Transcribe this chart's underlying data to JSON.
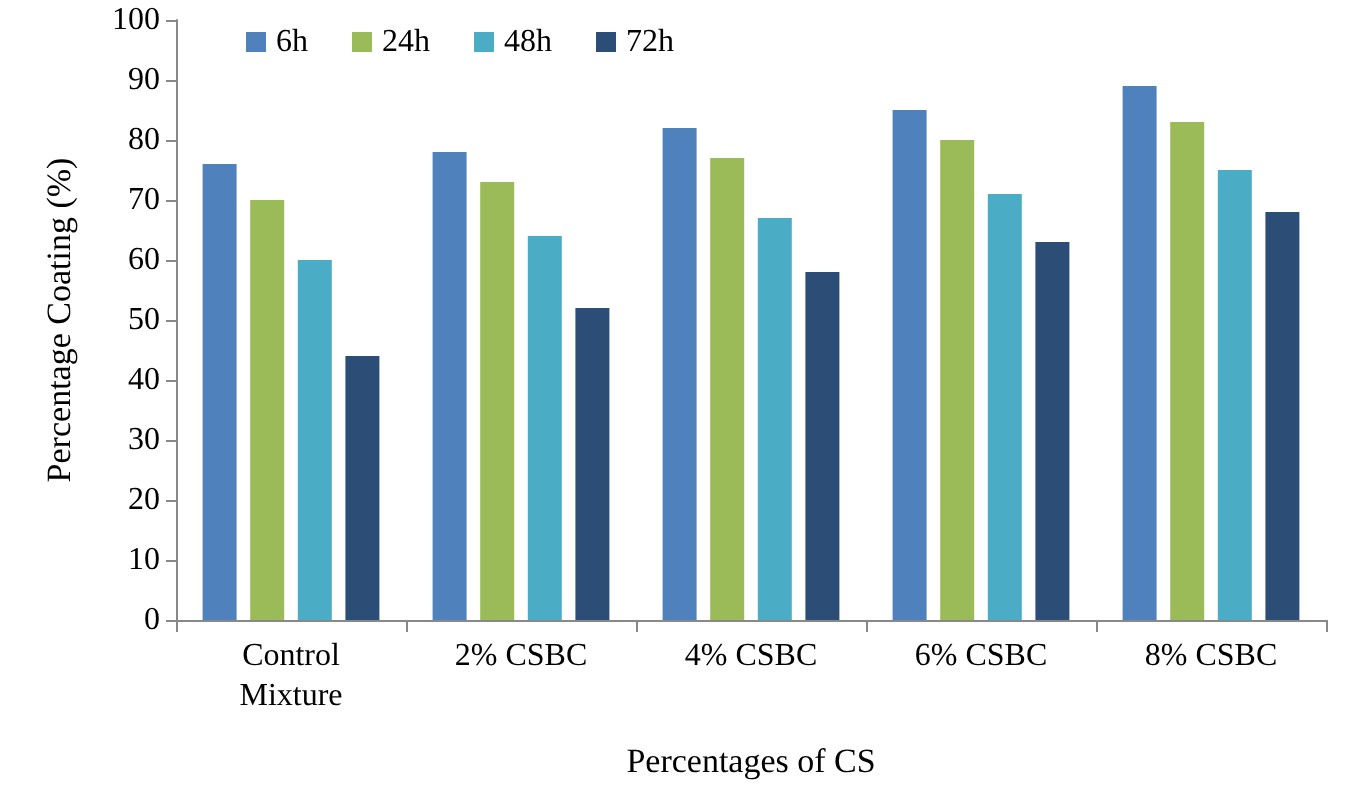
{
  "chart_data": {
    "type": "bar",
    "categories": [
      "Control\nMixture",
      "2% CSBC",
      "4% CSBC",
      "6% CSBC",
      "8% CSBC"
    ],
    "series": [
      {
        "name": "6h",
        "color": "#4f81bd",
        "values": [
          76,
          78,
          82,
          85,
          89
        ]
      },
      {
        "name": "24h",
        "color": "#9bbb59",
        "values": [
          70,
          73,
          77,
          80,
          83
        ]
      },
      {
        "name": "48h",
        "color": "#4bacc6",
        "values": [
          60,
          64,
          67,
          71,
          75
        ]
      },
      {
        "name": "72h",
        "color": "#2c4d75",
        "values": [
          44,
          52,
          58,
          63,
          68
        ]
      }
    ],
    "xlabel": "Percentages of CS",
    "ylabel": "Percentage Coating (%)",
    "ylim": [
      0,
      100
    ],
    "yticks": [
      0,
      10,
      20,
      30,
      40,
      50,
      60,
      70,
      80,
      90,
      100
    ],
    "grid": false,
    "legend": "top left"
  }
}
